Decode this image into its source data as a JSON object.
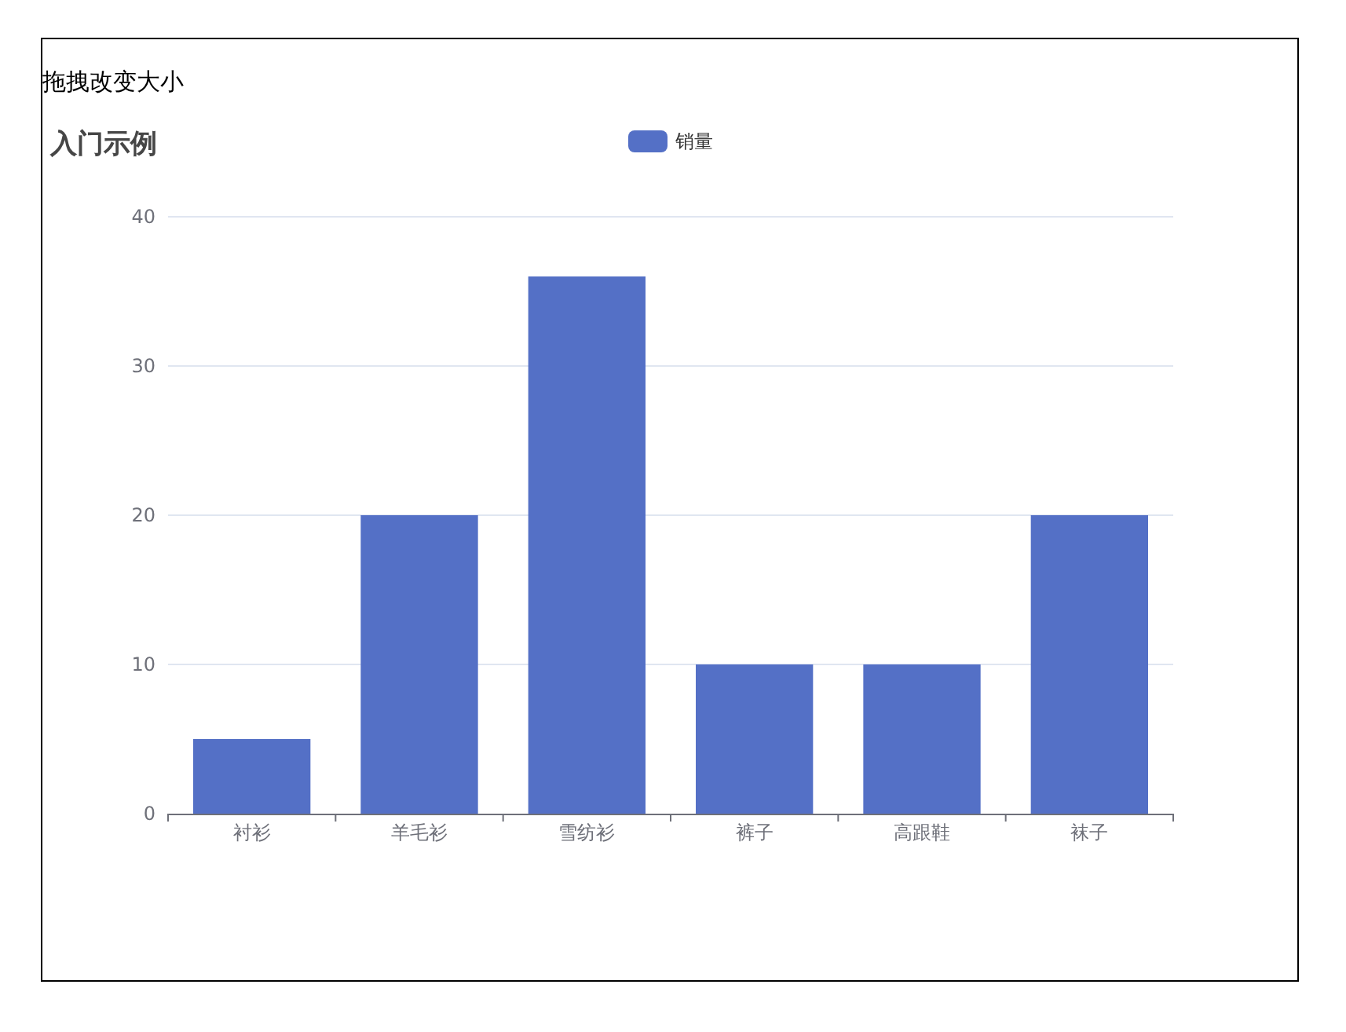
{
  "chart_data": {
    "type": "bar",
    "title": "入门示例",
    "annotations": [
      "拖拽改变大小"
    ],
    "categories": [
      "衬衫",
      "羊毛衫",
      "雪纺衫",
      "裤子",
      "高跟鞋",
      "袜子"
    ],
    "series": [
      {
        "name": "销量",
        "color": "#5470c6",
        "values": [
          5,
          20,
          36,
          10,
          10,
          20
        ]
      }
    ],
    "ylim": [
      0,
      40
    ],
    "yticks": [
      0,
      10,
      20,
      30,
      40
    ],
    "grid": "y",
    "legend": "top"
  }
}
